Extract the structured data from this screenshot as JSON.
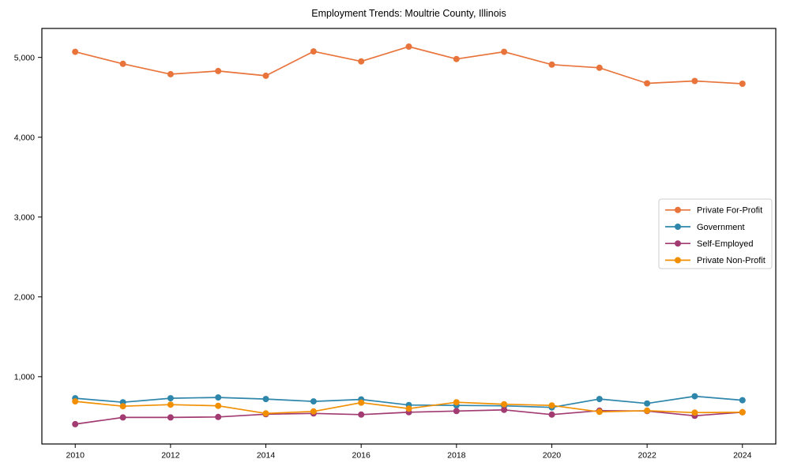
{
  "chart_data": {
    "type": "line",
    "title": "Employment Trends: Moultrie County, Illinois",
    "xlabel": "",
    "ylabel": "",
    "x": [
      2010,
      2011,
      2012,
      2013,
      2014,
      2015,
      2016,
      2017,
      2018,
      2019,
      2020,
      2021,
      2022,
      2023,
      2024
    ],
    "series": [
      {
        "name": "Private For-Profit",
        "color": "#E8743B",
        "values": [
          5070,
          4920,
          4790,
          4830,
          4770,
          5075,
          4950,
          5135,
          4980,
          5070,
          4910,
          4870,
          4675,
          4705,
          4670
        ]
      },
      {
        "name": "Government",
        "color": "#2E86AB",
        "values": [
          730,
          680,
          730,
          740,
          720,
          690,
          715,
          645,
          640,
          635,
          615,
          720,
          665,
          755,
          705
        ]
      },
      {
        "name": "Self-Employed",
        "color": "#A23B72",
        "values": [
          405,
          490,
          490,
          495,
          530,
          540,
          525,
          555,
          570,
          585,
          525,
          575,
          570,
          510,
          555
        ]
      },
      {
        "name": "Private Non-Profit",
        "color": "#F18F01",
        "values": [
          690,
          630,
          650,
          635,
          540,
          565,
          675,
          600,
          680,
          655,
          640,
          560,
          575,
          550,
          555
        ]
      }
    ],
    "xticks": [
      2010,
      2012,
      2014,
      2016,
      2018,
      2020,
      2022,
      2024
    ],
    "xtick_labels": [
      "2010",
      "2012",
      "2014",
      "2016",
      "2018",
      "2020",
      "2022",
      "2024"
    ],
    "yticks": [
      1000,
      2000,
      3000,
      4000,
      5000
    ],
    "ytick_labels": [
      "1,000",
      "2,000",
      "3,000",
      "4,000",
      "5,000"
    ],
    "xlim": [
      2009.3,
      2024.7
    ],
    "ylim": [
      157,
      5363
    ],
    "grid": false,
    "legend_position": "center-right",
    "marker": "circle",
    "axis_color": "#000000",
    "legend_border_color": "#cccccc",
    "legend_bg_color": "#ffffff",
    "text_color": "#000000"
  }
}
